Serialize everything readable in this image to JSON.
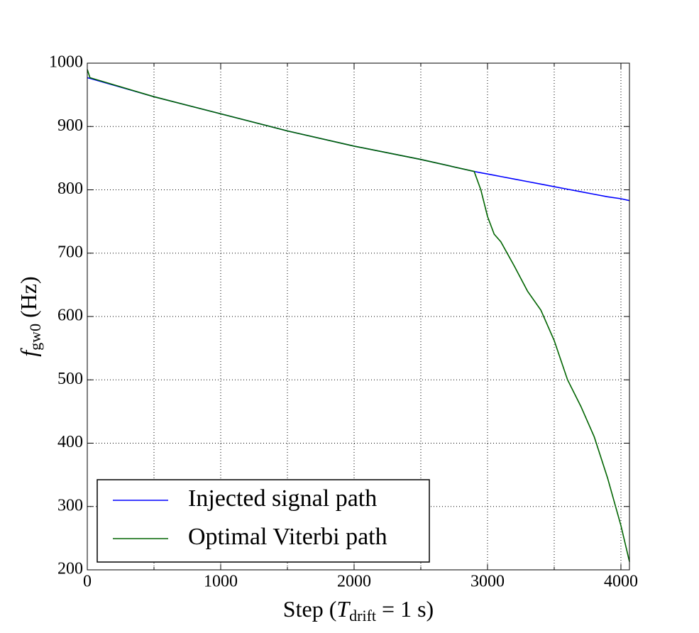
{
  "chart_data": {
    "type": "line",
    "xlabel": [
      "Step (",
      "T",
      "drift",
      " = 1 s)"
    ],
    "ylabel": [
      "f",
      "gw0",
      " (Hz)"
    ],
    "x": [
      0,
      20,
      500,
      1000,
      1500,
      2000,
      2500,
      2900,
      2950,
      3000,
      3050,
      3100,
      3200,
      3300,
      3400,
      3500,
      3600,
      3700,
      3800,
      3900,
      4000,
      4064
    ],
    "series": [
      {
        "name": "Injected signal path",
        "color": "#0000ff",
        "values": [
          977,
          976,
          947,
          920,
          893,
          869,
          848,
          829,
          827,
          825,
          823,
          821,
          817,
          813,
          809,
          805,
          801,
          797,
          793,
          789,
          786,
          783
        ]
      },
      {
        "name": "Optimal Viterbi path",
        "color": "#006400",
        "values": [
          990,
          977,
          947,
          920,
          893,
          869,
          848,
          829,
          800,
          758,
          730,
          718,
          680,
          640,
          610,
          562,
          500,
          458,
          410,
          345,
          270,
          213
        ]
      }
    ],
    "xlim": [
      0,
      4064
    ],
    "ylim": [
      200,
      1000
    ],
    "xticks": [
      0,
      1000,
      2000,
      3000,
      4000
    ],
    "xminor": [
      500,
      1500,
      2500,
      3500
    ],
    "yticks": [
      200,
      300,
      400,
      500,
      600,
      700,
      800,
      900,
      1000
    ],
    "grid": true,
    "legend": "lower left"
  }
}
